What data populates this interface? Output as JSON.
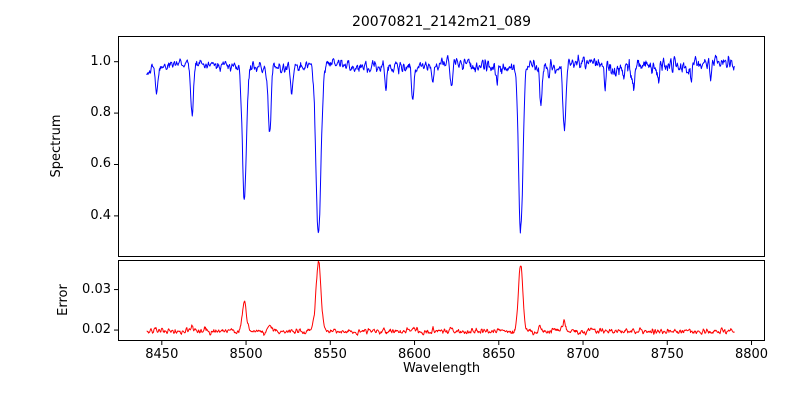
{
  "figure": {
    "title": "20070821_2142m21_089",
    "background": "#ffffff",
    "spine_color": "#000000",
    "text_color": "#000000"
  },
  "chart_data": [
    {
      "type": "line",
      "name": "spectrum-panel",
      "title": "20070821_2142m21_089",
      "ylabel": "Spectrum",
      "line_color": "#0000ff",
      "x_start": 8441,
      "x_end": 8790,
      "xlim": [
        8424,
        8808
      ],
      "ylim": [
        0.24,
        1.1
      ],
      "yticks": [
        0.4,
        0.6,
        0.8,
        1.0
      ],
      "ytick_labels": [
        "0.4",
        "0.6",
        "0.8",
        "1.0"
      ],
      "grid": false,
      "legend": false,
      "continuum_level": 0.985,
      "noise_sigma": 0.011,
      "absorption_lines": [
        {
          "center": 8434,
          "depth": 0.16,
          "width": 0.9,
          "min": 0.83
        },
        {
          "center": 8447,
          "depth": 0.09,
          "width": 0.7,
          "min": 0.9
        },
        {
          "center": 8468,
          "depth": 0.19,
          "width": 0.9,
          "min": 0.8
        },
        {
          "center": 8499,
          "depth": 0.52,
          "width": 1.2,
          "min": 0.47
        },
        {
          "center": 8514,
          "depth": 0.24,
          "width": 0.9,
          "min": 0.75
        },
        {
          "center": 8527,
          "depth": 0.1,
          "width": 0.7,
          "min": 0.89
        },
        {
          "center": 8543,
          "depth": 0.67,
          "width": 1.5,
          "min": 0.32
        },
        {
          "center": 8583,
          "depth": 0.07,
          "width": 0.7,
          "min": 0.92
        },
        {
          "center": 8599,
          "depth": 0.12,
          "width": 0.8,
          "min": 0.87
        },
        {
          "center": 8611,
          "depth": 0.07,
          "width": 0.6,
          "min": 0.92
        },
        {
          "center": 8622,
          "depth": 0.1,
          "width": 0.7,
          "min": 0.89
        },
        {
          "center": 8649,
          "depth": 0.07,
          "width": 0.6,
          "min": 0.92
        },
        {
          "center": 8663,
          "depth": 0.64,
          "width": 1.3,
          "min": 0.35
        },
        {
          "center": 8675,
          "depth": 0.15,
          "width": 0.7,
          "min": 0.84
        },
        {
          "center": 8689,
          "depth": 0.27,
          "width": 0.9,
          "min": 0.72
        },
        {
          "center": 8713,
          "depth": 0.07,
          "width": 0.6,
          "min": 0.92
        },
        {
          "center": 8730,
          "depth": 0.08,
          "width": 0.6,
          "min": 0.91
        },
        {
          "center": 8745,
          "depth": 0.07,
          "width": 0.6,
          "min": 0.92
        },
        {
          "center": 8764,
          "depth": 0.08,
          "width": 0.6,
          "min": 0.91
        },
        {
          "center": 8776,
          "depth": 0.06,
          "width": 0.5,
          "min": 0.93
        }
      ]
    },
    {
      "type": "line",
      "name": "error-panel",
      "ylabel": "Error",
      "xlabel": "Wavelength",
      "line_color": "#ff0000",
      "x_start": 8441,
      "x_end": 8790,
      "xlim": [
        8424,
        8808
      ],
      "ylim": [
        0.0173,
        0.0373
      ],
      "yticks": [
        0.02,
        0.03
      ],
      "ytick_labels": [
        "0.02",
        "0.03"
      ],
      "xticks": [
        8450,
        8500,
        8550,
        8600,
        8650,
        8700,
        8750,
        8800
      ],
      "xtick_labels": [
        "8450",
        "8500",
        "8550",
        "8600",
        "8650",
        "8700",
        "8750",
        "8800"
      ],
      "grid": false,
      "legend": false,
      "baseline": 0.0197,
      "noise_sigma": 0.00035,
      "error_spikes": [
        {
          "center": 8434,
          "height": 0.0018,
          "width": 1.0,
          "peak": 0.0215
        },
        {
          "center": 8468,
          "height": 0.0009,
          "width": 1.0,
          "peak": 0.0206
        },
        {
          "center": 8499,
          "height": 0.0072,
          "width": 1.2,
          "peak": 0.0269
        },
        {
          "center": 8514,
          "height": 0.0018,
          "width": 0.9,
          "peak": 0.0215
        },
        {
          "center": 8543,
          "height": 0.017,
          "width": 1.5,
          "peak": 0.0367
        },
        {
          "center": 8599,
          "height": 0.0007,
          "width": 0.8,
          "peak": 0.0204
        },
        {
          "center": 8622,
          "height": 0.0006,
          "width": 0.8,
          "peak": 0.0203
        },
        {
          "center": 8663,
          "height": 0.0164,
          "width": 1.3,
          "peak": 0.0361
        },
        {
          "center": 8675,
          "height": 0.0009,
          "width": 0.8,
          "peak": 0.0206
        },
        {
          "center": 8689,
          "height": 0.0028,
          "width": 0.9,
          "peak": 0.0225
        }
      ]
    }
  ]
}
